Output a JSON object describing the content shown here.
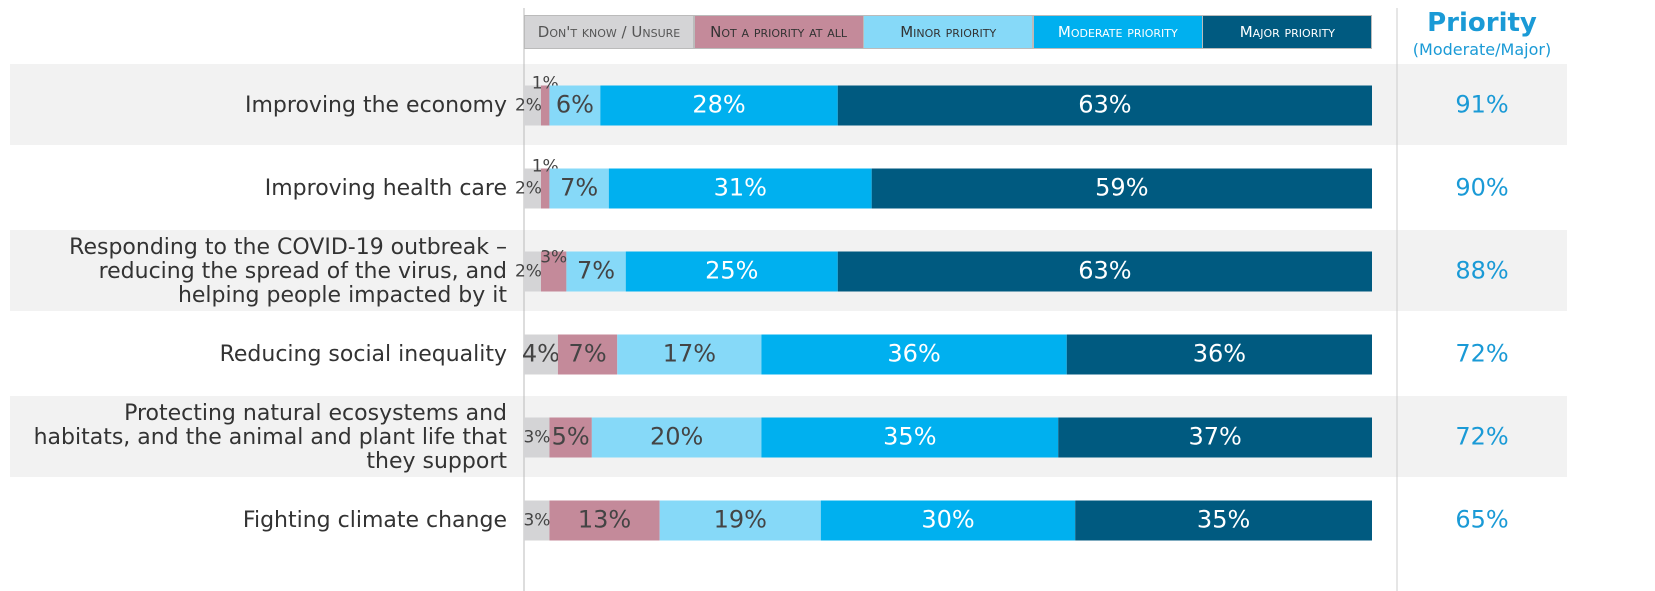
{
  "chart_data": {
    "type": "stacked-bar-horizontal",
    "categories": [
      "Improving the economy",
      "Improving health care",
      "Responding to the COVID-19 outbreak –\nreducing the spread of the virus, and\nhelping people impacted by it",
      "Reducing social inequality",
      "Protecting natural ecosystems and\nhabitats, and the animal and plant life that\nthey support",
      "Fighting climate change"
    ],
    "xlim": [
      0,
      100
    ],
    "series": [
      {
        "name": "Don't know / Unsure",
        "color": "#d4d4d6",
        "values": [
          2,
          2,
          2,
          4,
          3,
          3
        ],
        "value_labels": [
          "2%",
          "2%",
          "2%",
          "4%",
          "3%",
          "3%"
        ]
      },
      {
        "name": "Not a priority at all",
        "color": "#c48a9a",
        "values": [
          1,
          1,
          3,
          7,
          5,
          13
        ],
        "value_labels": [
          "1%",
          "1%",
          "3%",
          "7%",
          "5%",
          "13%"
        ]
      },
      {
        "name": "Minor priority",
        "color": "#86d9f8",
        "values": [
          6,
          7,
          7,
          17,
          20,
          19
        ],
        "value_labels": [
          "6%",
          "7%",
          "7%",
          "17%",
          "20%",
          "19%"
        ]
      },
      {
        "name": "Moderate priority",
        "color": "#00b0ef",
        "values": [
          28,
          31,
          25,
          36,
          35,
          30
        ],
        "value_labels": [
          "28%",
          "31%",
          "25%",
          "36%",
          "35%",
          "30%"
        ]
      },
      {
        "name": "Major priority",
        "color": "#005a80",
        "values": [
          63,
          59,
          63,
          36,
          37,
          35
        ],
        "value_labels": [
          "63%",
          "59%",
          "63%",
          "36%",
          "37%",
          "35%"
        ]
      }
    ],
    "priority": {
      "title": "Priority",
      "subtitle": "(Moderate/Major)",
      "values": [
        91,
        90,
        88,
        72,
        72,
        65
      ],
      "value_labels": [
        "91%",
        "90%",
        "88%",
        "72%",
        "72%",
        "65%"
      ]
    }
  }
}
